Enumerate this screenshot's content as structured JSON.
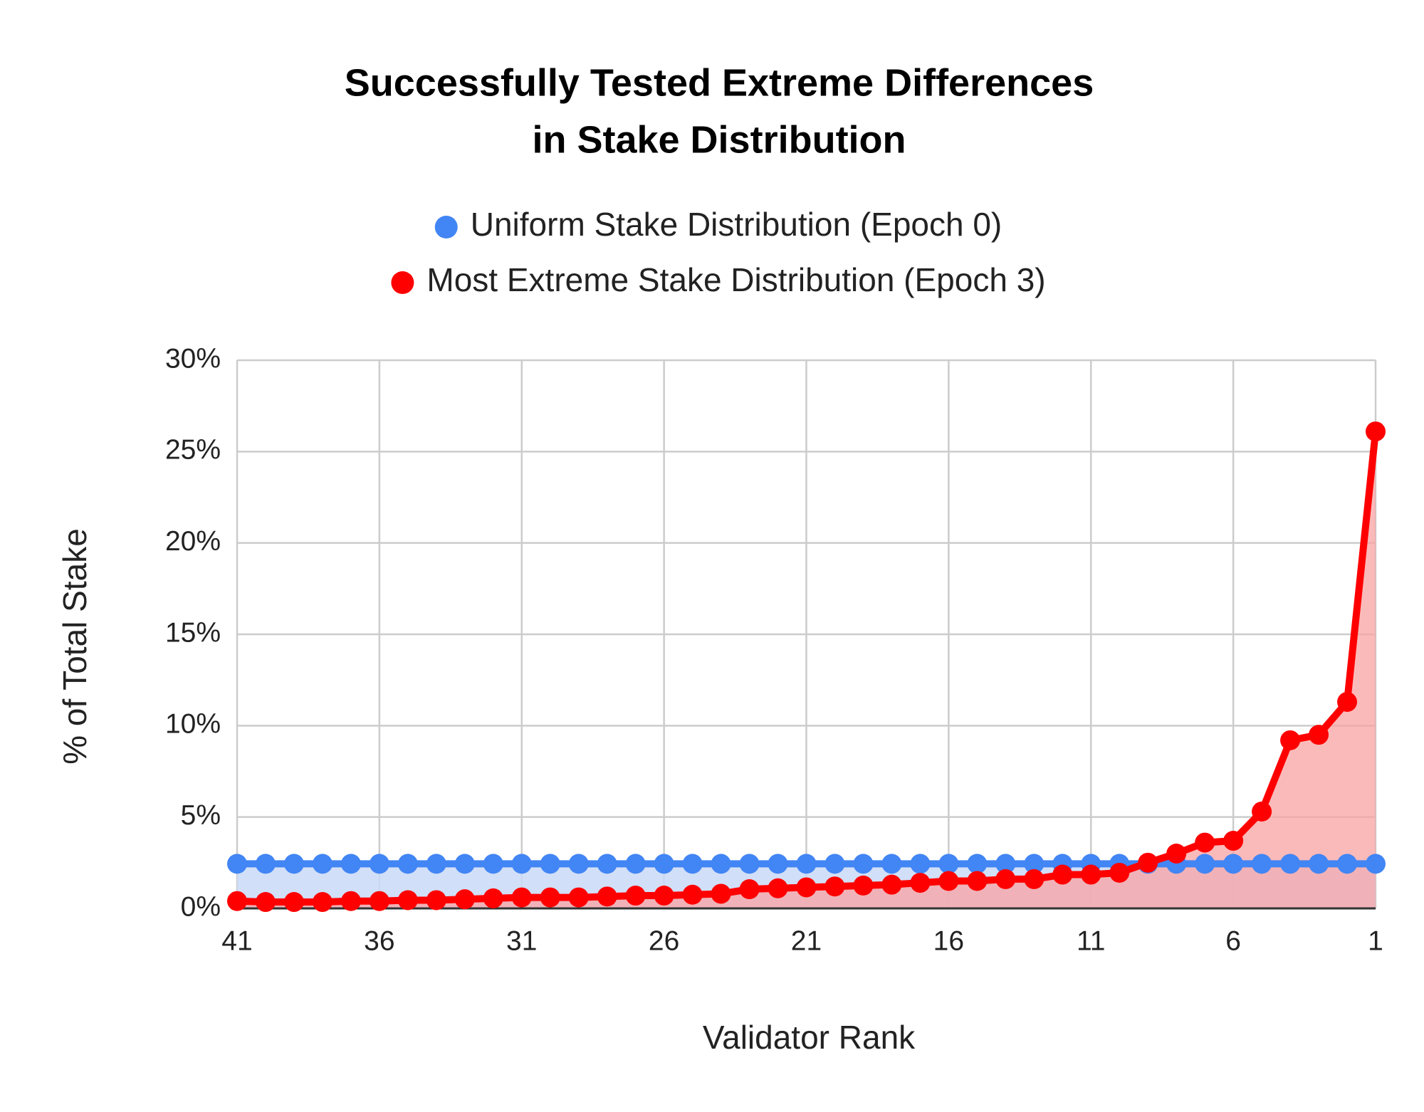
{
  "chart_data": {
    "type": "line",
    "title": [
      "Successfully Tested Extreme Differences",
      "in Stake Distribution"
    ],
    "x_label": "Validator Rank",
    "y_label": "% of Total Stake",
    "x": [
      41,
      40,
      39,
      38,
      37,
      36,
      35,
      34,
      33,
      32,
      31,
      30,
      29,
      28,
      27,
      26,
      25,
      24,
      23,
      22,
      21,
      20,
      19,
      18,
      17,
      16,
      15,
      14,
      13,
      12,
      11,
      10,
      9,
      8,
      7,
      6,
      5,
      4,
      3,
      2,
      1
    ],
    "xlim": [
      41,
      1
    ],
    "xticks": [
      41,
      36,
      31,
      26,
      21,
      16,
      11,
      6,
      1
    ],
    "ylim": [
      0,
      30
    ],
    "yticks": [
      {
        "value": 0,
        "label": "0%"
      },
      {
        "value": 5,
        "label": "5%"
      },
      {
        "value": 10,
        "label": "10%"
      },
      {
        "value": 15,
        "label": "15%"
      },
      {
        "value": 20,
        "label": "20%"
      },
      {
        "value": 25,
        "label": "25%"
      },
      {
        "value": 30,
        "label": "30%"
      }
    ],
    "grid": true,
    "legend": "top",
    "series": [
      {
        "name": "Uniform Stake Distribution (Epoch 0)",
        "color": "#4285f4",
        "fill": "#c9d9f7",
        "values": [
          2.44,
          2.44,
          2.44,
          2.44,
          2.44,
          2.44,
          2.44,
          2.44,
          2.44,
          2.44,
          2.44,
          2.44,
          2.44,
          2.44,
          2.44,
          2.44,
          2.44,
          2.44,
          2.44,
          2.44,
          2.44,
          2.44,
          2.44,
          2.44,
          2.44,
          2.44,
          2.44,
          2.44,
          2.44,
          2.44,
          2.44,
          2.44,
          2.44,
          2.44,
          2.44,
          2.44,
          2.44,
          2.44,
          2.44,
          2.44,
          2.44
        ]
      },
      {
        "name": "Most Extreme Stake Distribution (Epoch 3)",
        "color": "#ff0000",
        "fill": "#f9a3a3",
        "values": [
          0.4,
          0.35,
          0.35,
          0.35,
          0.4,
          0.4,
          0.45,
          0.45,
          0.5,
          0.55,
          0.6,
          0.6,
          0.6,
          0.65,
          0.7,
          0.7,
          0.75,
          0.8,
          1.05,
          1.1,
          1.15,
          1.2,
          1.25,
          1.3,
          1.4,
          1.5,
          1.5,
          1.6,
          1.6,
          1.85,
          1.85,
          1.95,
          2.5,
          3.0,
          3.6,
          3.7,
          5.3,
          9.2,
          9.5,
          11.3,
          26.1
        ]
      }
    ]
  }
}
